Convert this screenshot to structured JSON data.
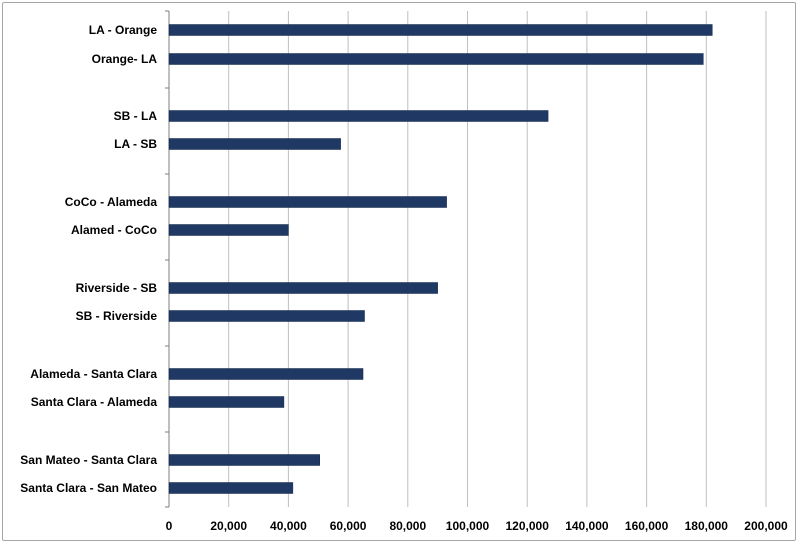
{
  "chart_data": {
    "type": "bar",
    "orientation": "horizontal",
    "title": "",
    "xlabel": "",
    "ylabel": "",
    "xlim": [
      0,
      200000
    ],
    "x_ticks": [
      0,
      20000,
      40000,
      60000,
      80000,
      100000,
      120000,
      140000,
      160000,
      180000,
      200000
    ],
    "x_tick_labels": [
      "0",
      "20,000",
      "40,000",
      "60,000",
      "80,000",
      "100,000",
      "120,000",
      "140,000",
      "160,000",
      "180,000",
      "200,000"
    ],
    "grid": "vertical",
    "legend": "none",
    "bar_color": "#1f3864",
    "categories": [
      "LA - Orange",
      "Orange- LA",
      "SB - LA",
      "LA - SB",
      "CoCo - Alameda",
      "Alamed - CoCo",
      "Riverside - SB",
      "SB - Riverside",
      "Alameda - Santa Clara",
      "Santa Clara - Alameda",
      "San Mateo - Santa Clara",
      "Santa Clara - San Mateo"
    ],
    "values": [
      182000,
      179000,
      127000,
      57500,
      93000,
      40000,
      90000,
      65500,
      65000,
      38500,
      50500,
      41500
    ]
  }
}
